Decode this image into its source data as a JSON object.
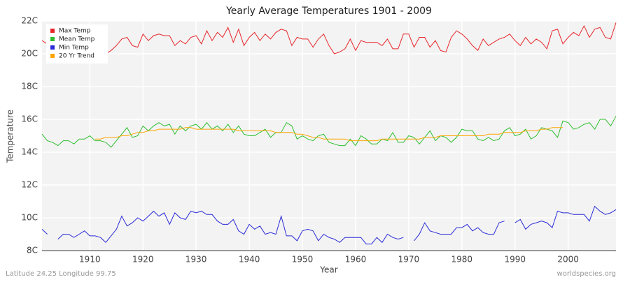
{
  "chart_data": {
    "type": "line",
    "title": "Yearly Average Temperatures 1901 - 2009",
    "x_label": "Year",
    "y_label": "Temperature",
    "footer_left": "Latitude 24.25 Longitude 99.75",
    "footer_right": "worldspecies.org",
    "legend": "upper left",
    "grid": true,
    "xlim": [
      1901,
      2009
    ],
    "xticks": [
      1910,
      1920,
      1930,
      1940,
      1950,
      1960,
      1970,
      1980,
      1990,
      2000
    ],
    "ylim": [
      8,
      22
    ],
    "yticks": [
      {
        "value": 8,
        "label": "8C"
      },
      {
        "value": 10,
        "label": "10C"
      },
      {
        "value": 12,
        "label": "12C"
      },
      {
        "value": 14,
        "label": "14C"
      },
      {
        "value": 16,
        "label": "16C"
      },
      {
        "value": 18,
        "label": "18C"
      },
      {
        "value": 20,
        "label": "20C"
      },
      {
        "value": 22,
        "label": "22C"
      }
    ],
    "x": [
      1901,
      1902,
      1903,
      1904,
      1905,
      1906,
      1907,
      1908,
      1909,
      1910,
      1911,
      1912,
      1913,
      1914,
      1915,
      1916,
      1917,
      1918,
      1919,
      1920,
      1921,
      1922,
      1923,
      1924,
      1925,
      1926,
      1927,
      1928,
      1929,
      1930,
      1931,
      1932,
      1933,
      1934,
      1935,
      1936,
      1937,
      1938,
      1939,
      1940,
      1941,
      1942,
      1943,
      1944,
      1945,
      1946,
      1947,
      1948,
      1949,
      1950,
      1951,
      1952,
      1953,
      1954,
      1955,
      1956,
      1957,
      1958,
      1959,
      1960,
      1961,
      1962,
      1963,
      1964,
      1965,
      1966,
      1967,
      1968,
      1969,
      1970,
      1971,
      1972,
      1973,
      1974,
      1975,
      1976,
      1977,
      1978,
      1979,
      1980,
      1981,
      1982,
      1983,
      1984,
      1985,
      1986,
      1987,
      1988,
      1989,
      1990,
      1991,
      1992,
      1993,
      1994,
      1995,
      1996,
      1997,
      1998,
      1999,
      2000,
      2001,
      2002,
      2003,
      2004,
      2005,
      2006,
      2007,
      2008,
      2009
    ],
    "series": [
      {
        "name": "Max Temp",
        "color": "#e8262a",
        "values": [
          20.8,
          20.6,
          20.7,
          20.5,
          20.6,
          20.4,
          20.7,
          20.5,
          20.6,
          20.3,
          20.4,
          20.2,
          20.0,
          20.2,
          20.5,
          20.9,
          21.0,
          20.5,
          20.4,
          21.2,
          20.8,
          21.1,
          21.2,
          21.1,
          21.1,
          20.5,
          20.8,
          20.6,
          21.0,
          21.1,
          20.6,
          21.4,
          20.8,
          21.3,
          21.0,
          21.6,
          20.7,
          21.5,
          20.5,
          21.0,
          21.3,
          20.8,
          21.2,
          20.9,
          21.3,
          21.5,
          21.4,
          20.5,
          21.0,
          20.9,
          20.9,
          20.4,
          20.9,
          21.2,
          20.5,
          20.0,
          20.1,
          20.3,
          20.9,
          20.2,
          20.8,
          20.7,
          20.7,
          20.7,
          20.5,
          20.9,
          20.3,
          20.3,
          21.2,
          21.2,
          20.4,
          21.0,
          21.0,
          20.4,
          20.8,
          20.2,
          20.1,
          21.0,
          21.4,
          21.2,
          20.9,
          20.5,
          20.2,
          20.9,
          20.5,
          20.7,
          20.9,
          21.0,
          21.2,
          20.8,
          20.5,
          21.0,
          20.6,
          20.9,
          20.7,
          20.3,
          21.4,
          21.5,
          20.6,
          21.0,
          21.3,
          21.1,
          21.7,
          21.0,
          21.5,
          21.6,
          21.0,
          20.9,
          21.9
        ]
      },
      {
        "name": "Mean Temp",
        "color": "#2fbf2f",
        "values": [
          15.1,
          14.7,
          14.6,
          14.4,
          14.7,
          14.7,
          14.5,
          14.8,
          14.8,
          15.0,
          14.7,
          14.7,
          14.6,
          14.3,
          14.7,
          15.1,
          15.5,
          14.9,
          15.0,
          15.6,
          15.3,
          15.6,
          15.8,
          15.6,
          15.7,
          15.1,
          15.6,
          15.3,
          15.6,
          15.7,
          15.4,
          15.8,
          15.4,
          15.6,
          15.3,
          15.7,
          15.2,
          15.6,
          15.1,
          15.0,
          15.0,
          15.2,
          15.4,
          14.9,
          15.2,
          15.2,
          15.8,
          15.6,
          14.8,
          15.0,
          14.8,
          14.7,
          15.0,
          15.1,
          14.6,
          14.5,
          14.4,
          14.4,
          14.8,
          14.4,
          15.0,
          14.8,
          14.5,
          14.5,
          14.8,
          14.7,
          15.2,
          14.6,
          14.6,
          15.0,
          14.9,
          14.5,
          14.9,
          15.3,
          14.7,
          15.0,
          14.9,
          14.6,
          14.9,
          15.4,
          15.3,
          15.3,
          14.8,
          14.7,
          14.9,
          14.7,
          14.8,
          15.3,
          15.5,
          15.0,
          15.1,
          15.4,
          14.8,
          15.0,
          15.5,
          15.4,
          15.3,
          14.9,
          15.9,
          15.8,
          15.4,
          15.5,
          15.7,
          15.8,
          15.4,
          16.0,
          16.0,
          15.6,
          16.2
        ]
      },
      {
        "name": "Min Temp",
        "color": "#2a2ad8",
        "values": [
          9.3,
          9.0,
          null,
          8.7,
          9.0,
          9.0,
          8.8,
          9.0,
          9.2,
          8.9,
          8.9,
          8.8,
          8.5,
          8.9,
          9.3,
          10.1,
          9.5,
          9.7,
          10.0,
          9.8,
          10.1,
          10.4,
          10.1,
          10.3,
          9.6,
          10.3,
          10.0,
          9.9,
          10.4,
          10.3,
          10.4,
          10.2,
          10.2,
          9.8,
          9.6,
          9.6,
          9.9,
          9.2,
          9.0,
          9.6,
          9.3,
          9.5,
          9.0,
          9.1,
          9.0,
          10.1,
          8.9,
          8.9,
          8.6,
          9.2,
          9.3,
          9.2,
          8.6,
          9.0,
          8.8,
          8.7,
          8.5,
          8.8,
          8.8,
          8.8,
          8.8,
          8.4,
          8.4,
          8.8,
          8.5,
          9.0,
          8.8,
          8.7,
          8.8,
          null,
          8.6,
          9.0,
          9.7,
          9.2,
          9.1,
          9.0,
          9.0,
          9.0,
          9.4,
          9.4,
          9.6,
          9.2,
          9.4,
          9.1,
          9.0,
          9.0,
          9.7,
          9.8,
          null,
          9.7,
          9.9,
          9.3,
          9.6,
          9.7,
          9.8,
          9.7,
          9.4,
          10.4,
          10.3,
          10.3,
          10.2,
          10.2,
          10.2,
          9.8,
          10.7,
          10.4,
          10.2,
          10.3,
          10.5
        ]
      },
      {
        "name": "20 Yr Trend",
        "color": "#ffa500",
        "values": [
          null,
          null,
          null,
          null,
          null,
          null,
          null,
          null,
          null,
          null,
          14.8,
          14.8,
          14.9,
          14.9,
          14.9,
          15.0,
          15.0,
          15.1,
          15.2,
          15.2,
          15.3,
          15.3,
          15.4,
          15.4,
          15.4,
          15.4,
          15.4,
          15.5,
          15.5,
          15.4,
          15.4,
          15.4,
          15.4,
          15.4,
          15.4,
          15.4,
          15.4,
          15.3,
          15.3,
          15.3,
          15.3,
          15.3,
          15.3,
          15.3,
          15.2,
          15.2,
          15.2,
          15.2,
          15.1,
          15.1,
          15.0,
          14.9,
          14.9,
          14.8,
          14.8,
          14.8,
          14.8,
          14.8,
          14.7,
          14.7,
          14.7,
          14.7,
          14.7,
          14.7,
          14.8,
          14.8,
          14.8,
          14.8,
          14.8,
          14.8,
          14.8,
          14.8,
          14.9,
          14.9,
          14.9,
          15.0,
          15.0,
          15.0,
          15.0,
          15.0,
          15.0,
          15.0,
          15.0,
          15.0,
          15.1,
          15.1,
          15.1,
          15.2,
          15.2,
          15.2,
          15.2,
          15.3,
          15.3,
          15.3,
          15.4,
          15.4,
          15.5,
          15.5,
          15.5,
          null,
          null,
          null,
          null,
          null,
          null,
          null,
          null,
          null,
          null
        ]
      }
    ]
  }
}
